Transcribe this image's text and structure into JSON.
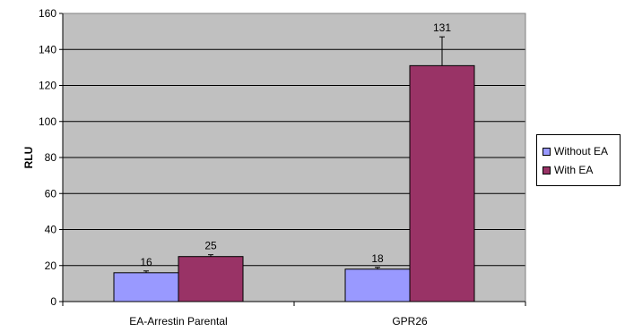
{
  "chart_data": {
    "type": "bar",
    "categories": [
      "EA-Arrestin Parental",
      "GPR26"
    ],
    "series": [
      {
        "name": "Without EA",
        "values": [
          16,
          18
        ],
        "errors": [
          1,
          1
        ],
        "color": "#9999ff"
      },
      {
        "name": "With EA",
        "values": [
          25,
          131
        ],
        "errors": [
          1,
          16
        ],
        "color": "#993366"
      }
    ],
    "data_labels": [
      [
        "16",
        "18"
      ],
      [
        "25",
        "131"
      ]
    ],
    "ylabel": "RLU",
    "ylim": [
      0,
      160
    ],
    "yticks": [
      0,
      20,
      40,
      60,
      80,
      100,
      120,
      140,
      160
    ],
    "plot_background": "#c0c0c0",
    "grid": true,
    "legend_position": "right"
  }
}
